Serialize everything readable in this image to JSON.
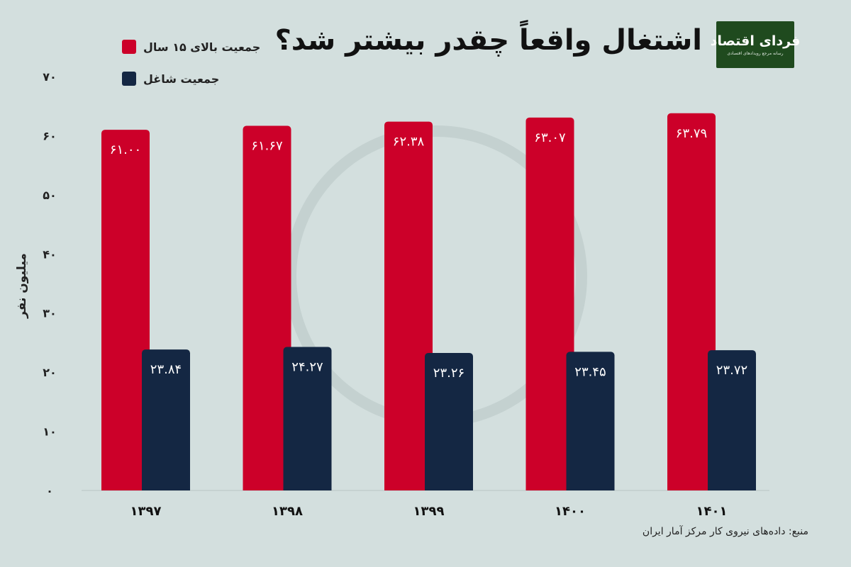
{
  "header": {
    "title": "اشتغال واقعاً چقدر بیشتر شد؟",
    "logo_main": "فردای اقتصاد",
    "logo_sub": "رسانه مرجع رویدادهای اقتصادی"
  },
  "source": "منبع: داده‌های نیروی کار مرکز آمار ایران",
  "colors": {
    "background": "#d3dfde",
    "red": "#cc0029",
    "navy": "#142743"
  },
  "chart_data": {
    "type": "bar",
    "ylabel": "میلیون نفر",
    "ylim": [
      0,
      70
    ],
    "yticks": [
      0,
      10,
      20,
      30,
      40,
      50,
      60,
      70
    ],
    "ytick_labels": [
      "۰",
      "۱۰",
      "۲۰",
      "۳۰",
      "۴۰",
      "۵۰",
      "۶۰",
      "۷۰"
    ],
    "categories": [
      "۱۳۹۷",
      "۱۳۹۸",
      "۱۳۹۹",
      "۱۴۰۰",
      "۱۴۰۱"
    ],
    "series": [
      {
        "name": "جمعیت بالای ۱۵ سال",
        "color": "#cc0029",
        "values": [
          61.0,
          61.67,
          62.38,
          63.07,
          63.79
        ],
        "labels": [
          "۶۱.۰۰",
          "۶۱.۶۷",
          "۶۲.۳۸",
          "۶۳.۰۷",
          "۶۳.۷۹"
        ]
      },
      {
        "name": "جمعیت شاغل",
        "color": "#142743",
        "values": [
          23.84,
          24.27,
          23.26,
          23.45,
          23.72
        ],
        "labels": [
          "۲۳.۸۴",
          "۲۴.۲۷",
          "۲۳.۲۶",
          "۲۳.۴۵",
          "۲۳.۷۲"
        ]
      }
    ],
    "legend_position": "top-left",
    "grid": false
  }
}
